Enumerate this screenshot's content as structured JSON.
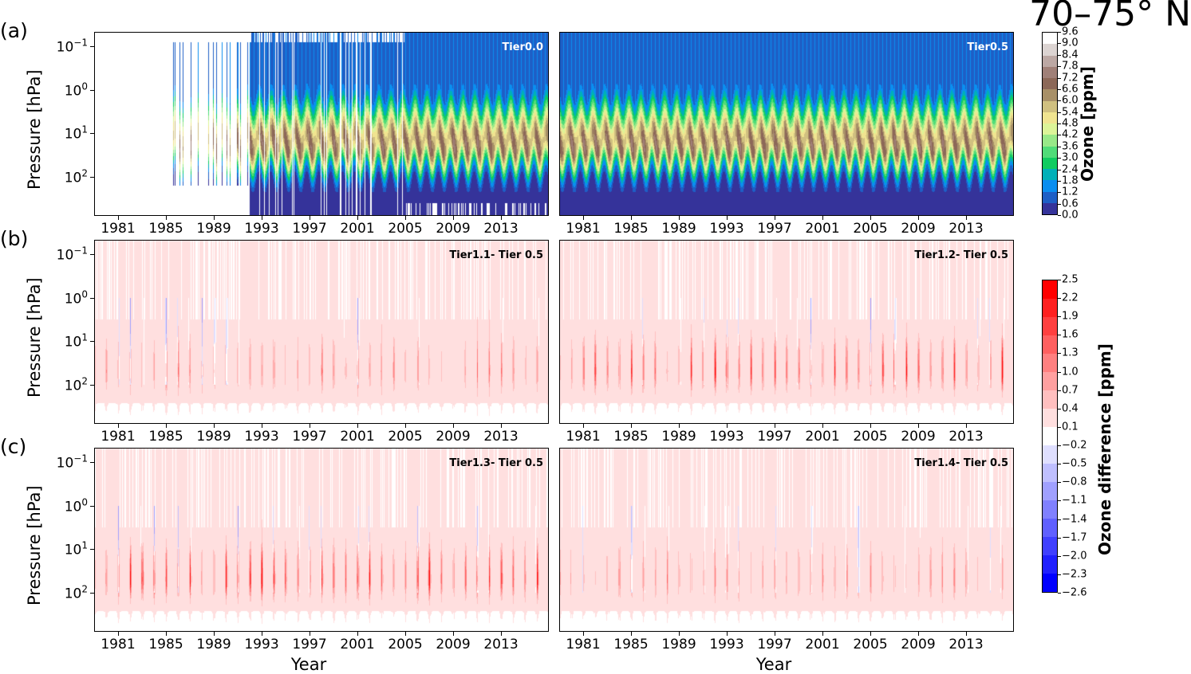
{
  "figure_title": "70–75° N",
  "chart_data": {
    "type": "heatmap",
    "panel_labels": [
      "(a)",
      "(b)",
      "(c)"
    ],
    "xlabel": "Year",
    "ylabel": "Pressure [hPa]",
    "xlim": [
      1979,
      2017
    ],
    "x_ticks": [
      "1981",
      "1985",
      "1989",
      "1993",
      "1997",
      "2001",
      "2005",
      "2009",
      "2013"
    ],
    "y_scale": "log",
    "ylim_hPa": [
      800,
      0.05
    ],
    "y_ticks": [
      {
        "base": "10",
        "exp": "−1",
        "value": 0.1
      },
      {
        "base": "10",
        "exp": "0",
        "value": 1
      },
      {
        "base": "10",
        "exp": "1",
        "value": 10
      },
      {
        "base": "10",
        "exp": "2",
        "value": 100
      }
    ],
    "panels": [
      {
        "title": "Tier0.0",
        "field": "ozone",
        "row": "a"
      },
      {
        "title": "Tier0.5",
        "field": "ozone",
        "row": "a"
      },
      {
        "title": "Tier1.1- Tier 0.5",
        "field": "difference",
        "row": "b",
        "strength": 0.6
      },
      {
        "title": "Tier1.2- Tier 0.5",
        "field": "difference",
        "row": "b",
        "strength": 1.0
      },
      {
        "title": "Tier1.3- Tier 0.5",
        "field": "difference",
        "row": "c",
        "strength": 1.1
      },
      {
        "title": "Tier1.4- Tier 0.5",
        "field": "difference",
        "row": "c",
        "strength": 0.55
      }
    ],
    "colorbars": {
      "ozone": {
        "label": "Ozone [ppm]",
        "ticks": [
          "0.0",
          "0.6",
          "1.2",
          "1.8",
          "2.4",
          "3.0",
          "3.6",
          "4.2",
          "4.8",
          "5.4",
          "6.0",
          "6.6",
          "7.2",
          "7.8",
          "8.4",
          "9.0",
          "9.6"
        ],
        "levels_min": 0.0,
        "levels_step": 0.6,
        "colors": [
          "#35339a",
          "#1e5fc6",
          "#0a8ef0",
          "#00b0b8",
          "#10cc60",
          "#50dc78",
          "#98e888",
          "#dcf498",
          "#f0e490",
          "#d0c080",
          "#a89068",
          "#8c6858",
          "#a08078",
          "#bca8a4",
          "#dcd4d2",
          "#ffffff"
        ]
      },
      "difference": {
        "label": "Ozone difference [ppm]",
        "ticks": [
          "2.5",
          "2.2",
          "1.9",
          "1.6",
          "1.3",
          "1.0",
          "0.7",
          "0.4",
          "0.1",
          "−0.2",
          "−0.5",
          "−0.8",
          "−1.1",
          "−1.4",
          "−1.7",
          "−2.0",
          "−2.3",
          "−2.6"
        ],
        "levels_min": -2.6,
        "levels_step": 0.3,
        "colors": [
          "#0000ff",
          "#2020ff",
          "#4040ff",
          "#6060ff",
          "#8080ff",
          "#a0a0ff",
          "#bfbfff",
          "#dfdfff",
          "#ffffff",
          "#ffdfdf",
          "#ffbfbf",
          "#ffa0a0",
          "#ff8080",
          "#ff6060",
          "#ff4040",
          "#ff2020",
          "#ff0000"
        ]
      }
    }
  }
}
